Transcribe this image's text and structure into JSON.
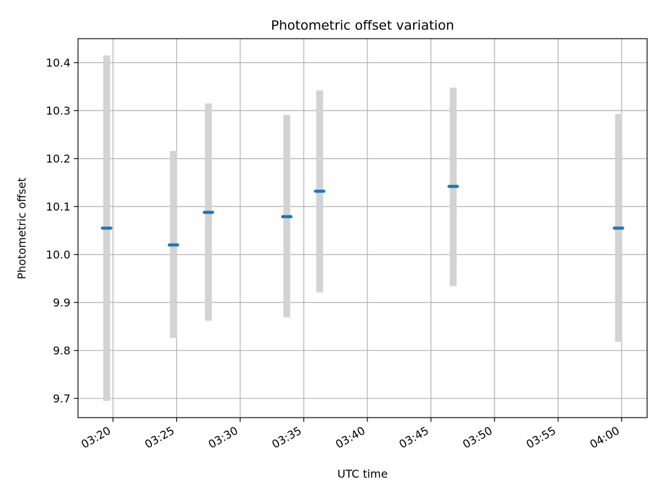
{
  "chart_data": {
    "type": "scatter",
    "title": "Photometric offset variation",
    "xlabel": "UTC time",
    "ylabel": "Photometric offset",
    "x_tick_labels": [
      "03:20",
      "03:25",
      "03:30",
      "03:35",
      "03:40",
      "03:45",
      "03:50",
      "03:55",
      "04:00"
    ],
    "x_tick_values": [
      "03:20",
      "03:25",
      "03:30",
      "03:35",
      "03:40",
      "03:45",
      "03:50",
      "03:55",
      "04:00"
    ],
    "xlim": [
      "03:17:15",
      "04:02:00"
    ],
    "y_tick_labels": [
      "9.7",
      "9.8",
      "9.9",
      "10.0",
      "10.1",
      "10.2",
      "10.3",
      "10.4"
    ],
    "y_tick_values": [
      9.7,
      9.8,
      9.9,
      10.0,
      10.1,
      10.2,
      10.3,
      10.4
    ],
    "ylim": [
      9.66,
      10.45
    ],
    "grid": true,
    "points": [
      {
        "x": "03:19:30",
        "y": 10.055,
        "ylow": 9.695,
        "yhigh": 10.415
      },
      {
        "x": "03:24:45",
        "y": 10.02,
        "ylow": 9.826,
        "yhigh": 10.216
      },
      {
        "x": "03:27:30",
        "y": 10.088,
        "ylow": 9.862,
        "yhigh": 10.315
      },
      {
        "x": "03:33:40",
        "y": 10.079,
        "ylow": 9.869,
        "yhigh": 10.291
      },
      {
        "x": "03:36:15",
        "y": 10.132,
        "ylow": 9.921,
        "yhigh": 10.342
      },
      {
        "x": "03:46:45",
        "y": 10.142,
        "ylow": 9.934,
        "yhigh": 10.348
      },
      {
        "x": "03:59:45",
        "y": 10.055,
        "ylow": 9.818,
        "yhigh": 10.293
      }
    ],
    "colors": {
      "marker": "#1f77b4",
      "errorbar": "#d3d3d3",
      "grid": "#b0b0b0",
      "axes": "#000000"
    }
  }
}
